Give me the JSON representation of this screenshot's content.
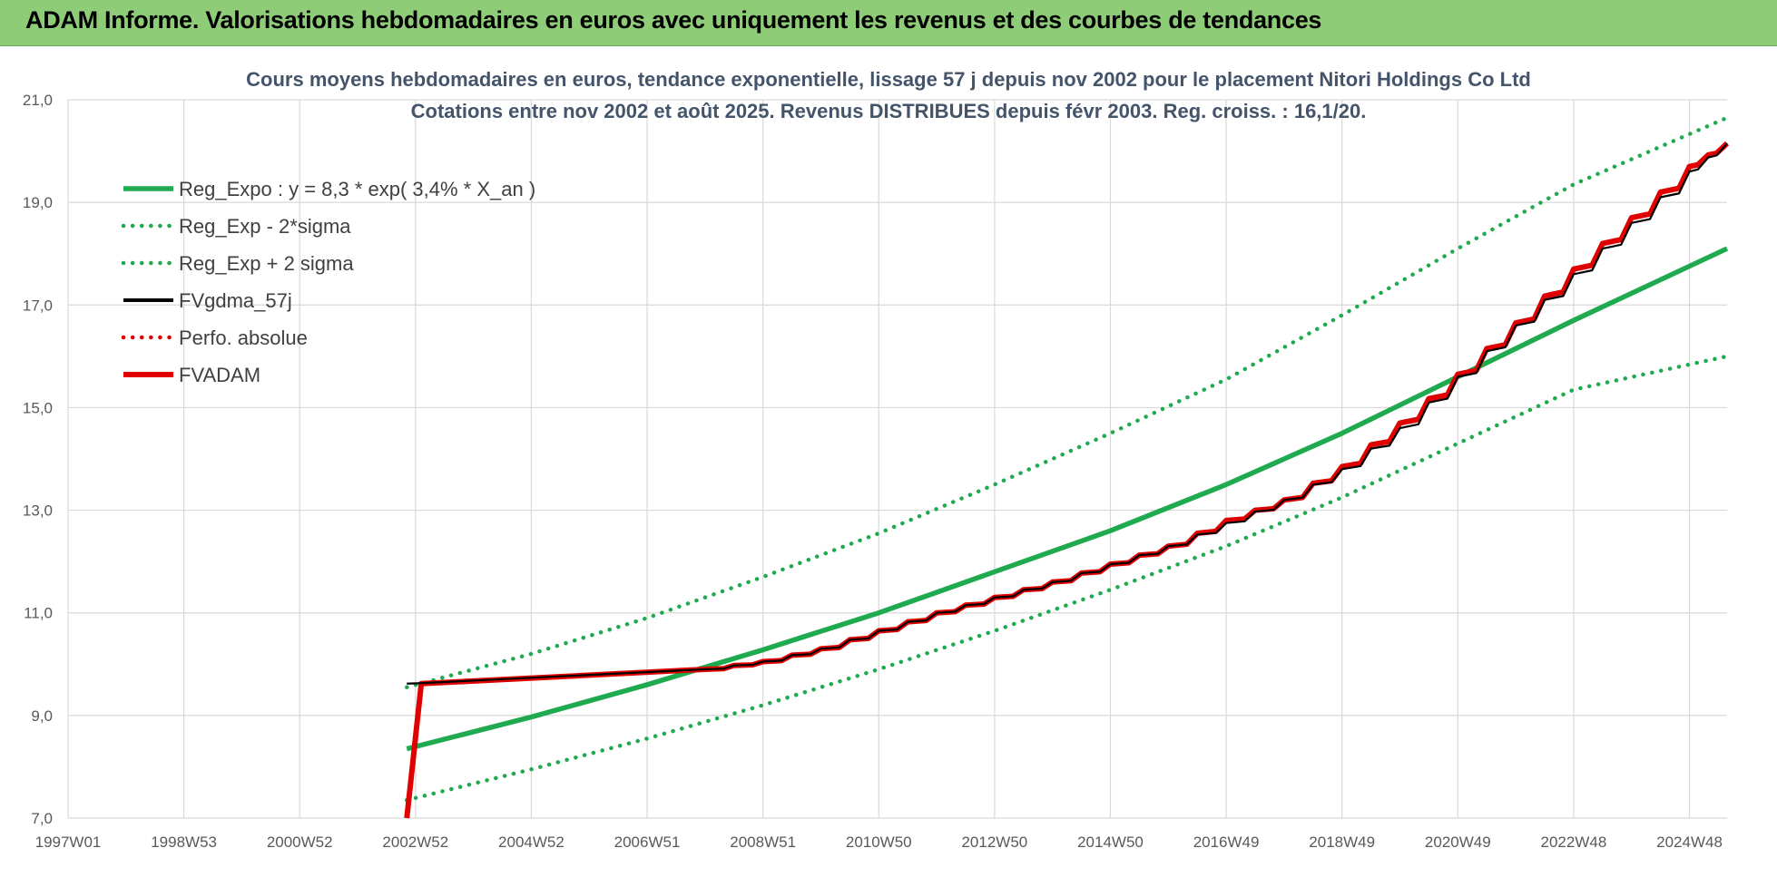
{
  "banner": {
    "title": "ADAM Informe. Valorisations hebdomadaires en euros avec uniquement les revenus et des courbes de tendances"
  },
  "colors": {
    "banner_bg": "#8fcc78",
    "reg_green": "#1faa4f",
    "fv_red": "#e00000",
    "fv_black": "#000000",
    "grid": "#d9d9d9"
  },
  "chart_data": {
    "type": "line",
    "title": "Cours moyens hebdomadaires en euros, tendance exponentielle, lissage 57 j depuis nov 2002 pour le placement Nitori Holdings Co Ltd",
    "subtitle": "Cotations entre nov 2002 et août 2025. Revenus DISTRIBUES depuis févr 2003. Reg. croiss. : 16,1/20.",
    "xlabel": "",
    "ylabel": "",
    "x_range": [
      1997.0,
      2025.65
    ],
    "ylim": [
      7.0,
      21.0
    ],
    "y_ticks": [
      7.0,
      9.0,
      11.0,
      13.0,
      15.0,
      17.0,
      19.0,
      21.0
    ],
    "y_tick_labels": [
      "7,0",
      "9,0",
      "11,0",
      "13,0",
      "15,0",
      "17,0",
      "19,0",
      "21,0"
    ],
    "x_ticks": [
      1997.0,
      1999.0,
      2001.0,
      2003.0,
      2005.0,
      2007.0,
      2009.0,
      2011.0,
      2013.0,
      2015.0,
      2017.0,
      2019.0,
      2021.0,
      2023.0,
      2025.0
    ],
    "x_tick_labels": [
      "1997W01",
      "1998W53",
      "2000W52",
      "2002W52",
      "2004W52",
      "2006W51",
      "2008W51",
      "2010W50",
      "2012W50",
      "2014W50",
      "2016W49",
      "2018W49",
      "2020W49",
      "2022W48",
      "2024W48"
    ],
    "grid": true,
    "legend_position": "top-left",
    "legend": [
      "Reg_Expo : y = 8,3 * exp( 3,4% *  X_an )",
      "Reg_Exp - 2*sigma",
      "Reg_Exp + 2 sigma",
      "FVgdma_57j",
      "Perfo. absolue",
      "FVADAM"
    ],
    "series": [
      {
        "name": "Reg_Expo : y = 8,3 * exp( 3,4% *  X_an )",
        "style": "solid",
        "color": "#1faa4f",
        "x": [
          2002.85,
          2005.0,
          2007.0,
          2009.0,
          2011.0,
          2013.0,
          2015.0,
          2017.0,
          2019.0,
          2021.0,
          2023.0,
          2025.65
        ],
        "y": [
          8.35,
          8.97,
          9.6,
          10.28,
          11.0,
          11.8,
          12.6,
          13.5,
          14.5,
          15.6,
          16.7,
          18.1
        ]
      },
      {
        "name": "Reg_Exp - 2*sigma",
        "style": "dotted",
        "color": "#1faa4f",
        "x": [
          2002.85,
          2005.0,
          2007.0,
          2009.0,
          2011.0,
          2013.0,
          2015.0,
          2017.0,
          2019.0,
          2021.0,
          2023.0,
          2025.65
        ],
        "y": [
          7.35,
          7.95,
          8.55,
          9.2,
          9.9,
          10.65,
          11.45,
          12.3,
          13.25,
          14.3,
          15.35,
          16.0
        ]
      },
      {
        "name": "Reg_Exp + 2 sigma",
        "style": "dotted",
        "color": "#1faa4f",
        "x": [
          2002.85,
          2005.0,
          2007.0,
          2009.0,
          2011.0,
          2013.0,
          2015.0,
          2017.0,
          2019.0,
          2021.0,
          2023.0,
          2025.65
        ],
        "y": [
          9.55,
          10.2,
          10.9,
          11.7,
          12.55,
          13.5,
          14.5,
          15.55,
          16.8,
          18.1,
          19.35,
          20.65
        ]
      },
      {
        "name": "FVgdma_57j",
        "style": "solid-thin",
        "color": "#000000",
        "x": [
          2002.85,
          2003.1,
          2008.0,
          2009.0,
          2010.0,
          2011.0,
          2012.0,
          2013.0,
          2014.0,
          2015.0,
          2016.0,
          2017.0,
          2018.0,
          2019.0,
          2020.0,
          2021.0,
          2022.0,
          2023.0,
          2024.0,
          2025.0,
          2025.65
        ],
        "y": [
          9.62,
          9.63,
          9.9,
          10.05,
          10.3,
          10.65,
          11.0,
          11.3,
          11.6,
          11.95,
          12.3,
          12.75,
          13.2,
          13.8,
          14.6,
          15.6,
          16.6,
          17.6,
          18.6,
          19.6,
          20.15
        ]
      },
      {
        "name": "Perfo. absolue",
        "style": "dotted",
        "color": "#e00000",
        "x": [],
        "y": []
      },
      {
        "name": "FVADAM",
        "style": "solid-thick",
        "color": "#e00000",
        "x": [
          2002.85,
          2003.1,
          2008.0,
          2009.0,
          2010.0,
          2011.0,
          2012.0,
          2013.0,
          2014.0,
          2015.0,
          2016.0,
          2017.0,
          2018.0,
          2019.0,
          2020.0,
          2021.0,
          2022.0,
          2023.0,
          2024.0,
          2025.0,
          2025.65
        ],
        "y": [
          7.0,
          9.62,
          9.9,
          10.05,
          10.3,
          10.65,
          11.0,
          11.3,
          11.6,
          11.95,
          12.3,
          12.8,
          13.2,
          13.85,
          14.7,
          15.65,
          16.65,
          17.7,
          18.7,
          19.7,
          20.15
        ]
      }
    ]
  }
}
